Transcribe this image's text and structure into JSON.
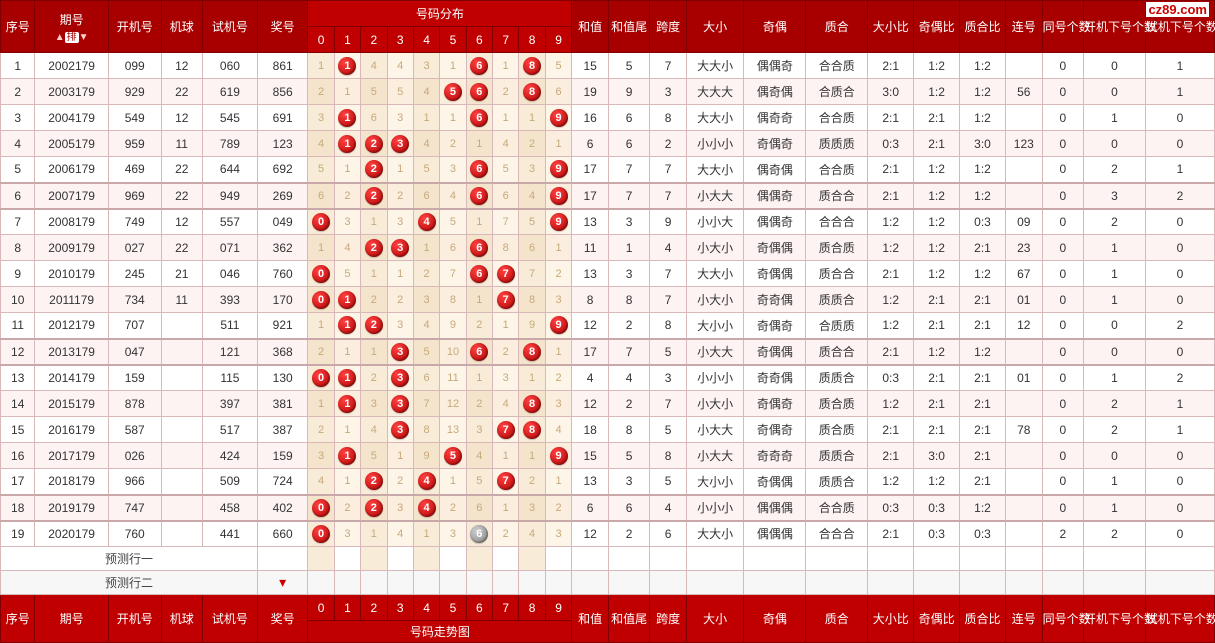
{
  "watermark": "cz89.com",
  "columns": {
    "seq": "序号",
    "period": "期号",
    "sort_label": "排",
    "open_num": "开机号",
    "machine_ball": "机球",
    "test_num": "试机号",
    "prize_num": "奖号",
    "dist_header": "号码分布",
    "dist_digits": [
      "0",
      "1",
      "2",
      "3",
      "4",
      "5",
      "6",
      "7",
      "8",
      "9"
    ],
    "sum": "和值",
    "sum_tail": "和值尾",
    "span": "跨度",
    "size": "大小",
    "parity": "奇偶",
    "prime": "质合",
    "size_ratio": "大小比",
    "parity_ratio": "奇偶比",
    "prime_ratio": "质合比",
    "consec": "连号",
    "same_count": "同号个数",
    "open_next_count": "开机下号个数",
    "test_next_count": "试机下号个数"
  },
  "footer_trend_label": "号码走势图",
  "predict_rows": [
    "预测行一",
    "预测行二"
  ],
  "rows": [
    {
      "seq": 1,
      "period": "2002179",
      "open": "099",
      "mb": "12",
      "test": "060",
      "prize": "861",
      "dist": [
        1,
        "B1",
        4,
        4,
        3,
        1,
        "B6",
        1,
        "B8",
        5
      ],
      "sum": 15,
      "tail": 5,
      "span": 7,
      "size": "大大小",
      "parity": "偶偶奇",
      "prime": "合合质",
      "sr": "2:1",
      "pr": "1:2",
      "zr": "1:2",
      "consec": "",
      "same": 0,
      "onxt": 0,
      "tnxt": 1
    },
    {
      "seq": 2,
      "period": "2003179",
      "open": "929",
      "mb": "22",
      "test": "619",
      "prize": "856",
      "dist": [
        2,
        1,
        5,
        5,
        4,
        "B5",
        "B6",
        2,
        "B8",
        6
      ],
      "sum": 19,
      "tail": 9,
      "span": 3,
      "size": "大大大",
      "parity": "偶奇偶",
      "prime": "合质合",
      "sr": "3:0",
      "pr": "1:2",
      "zr": "1:2",
      "consec": "56",
      "same": 0,
      "onxt": 0,
      "tnxt": 1
    },
    {
      "seq": 3,
      "period": "2004179",
      "open": "549",
      "mb": "12",
      "test": "545",
      "prize": "691",
      "dist": [
        3,
        "B1",
        6,
        3,
        1,
        1,
        "B6",
        1,
        1,
        "B9"
      ],
      "sum": 16,
      "tail": 6,
      "span": 8,
      "size": "大大小",
      "parity": "偶奇奇",
      "prime": "合合质",
      "sr": "2:1",
      "pr": "2:1",
      "zr": "1:2",
      "consec": "",
      "same": 0,
      "onxt": 1,
      "tnxt": 0
    },
    {
      "seq": 4,
      "period": "2005179",
      "open": "959",
      "mb": "11",
      "test": "789",
      "prize": "123",
      "dist": [
        4,
        "B1",
        "B2",
        "B3",
        4,
        2,
        1,
        4,
        2,
        1
      ],
      "sum": 6,
      "tail": 6,
      "span": 2,
      "size": "小小小",
      "parity": "奇偶奇",
      "prime": "质质质",
      "sr": "0:3",
      "pr": "2:1",
      "zr": "3:0",
      "consec": "123",
      "same": 0,
      "onxt": 0,
      "tnxt": 0
    },
    {
      "seq": 5,
      "period": "2006179",
      "open": "469",
      "mb": "22",
      "test": "644",
      "prize": "692",
      "dist": [
        5,
        1,
        "B2",
        1,
        5,
        3,
        "B6",
        5,
        3,
        "B9"
      ],
      "sum": 17,
      "tail": 7,
      "span": 7,
      "size": "大大小",
      "parity": "偶奇偶",
      "prime": "合合质",
      "sr": "2:1",
      "pr": "1:2",
      "zr": "1:2",
      "consec": "",
      "same": 0,
      "onxt": 2,
      "tnxt": 1
    },
    {
      "seq": 6,
      "period": "2007179",
      "open": "969",
      "mb": "22",
      "test": "949",
      "prize": "269",
      "dist": [
        6,
        2,
        "B2",
        2,
        6,
        4,
        "B6",
        6,
        4,
        "B9"
      ],
      "sum": 17,
      "tail": 7,
      "span": 7,
      "size": "小大大",
      "parity": "偶偶奇",
      "prime": "质合合",
      "sr": "2:1",
      "pr": "1:2",
      "zr": "1:2",
      "consec": "",
      "same": 0,
      "onxt": 3,
      "tnxt": 2,
      "gap": true
    },
    {
      "seq": 7,
      "period": "2008179",
      "open": "749",
      "mb": "12",
      "test": "557",
      "prize": "049",
      "dist": [
        "B0",
        3,
        1,
        3,
        "B4",
        5,
        1,
        7,
        5,
        "B9"
      ],
      "sum": 13,
      "tail": 3,
      "span": 9,
      "size": "小小大",
      "parity": "偶偶奇",
      "prime": "合合合",
      "sr": "1:2",
      "pr": "1:2",
      "zr": "0:3",
      "consec": "09",
      "same": 0,
      "onxt": 2,
      "tnxt": 0,
      "gap": true
    },
    {
      "seq": 8,
      "period": "2009179",
      "open": "027",
      "mb": "22",
      "test": "071",
      "prize": "362",
      "dist": [
        1,
        4,
        "B2",
        "B3",
        1,
        6,
        "B6",
        8,
        6,
        1
      ],
      "sum": 11,
      "tail": 1,
      "span": 4,
      "size": "小大小",
      "parity": "奇偶偶",
      "prime": "质合质",
      "sr": "1:2",
      "pr": "1:2",
      "zr": "2:1",
      "consec": "23",
      "same": 0,
      "onxt": 1,
      "tnxt": 0
    },
    {
      "seq": 9,
      "period": "2010179",
      "open": "245",
      "mb": "21",
      "test": "046",
      "prize": "760",
      "dist": [
        "B0",
        5,
        1,
        1,
        2,
        7,
        "B6",
        "B7",
        7,
        2
      ],
      "sum": 13,
      "tail": 3,
      "span": 7,
      "size": "大大小",
      "parity": "奇偶偶",
      "prime": "质合合",
      "sr": "2:1",
      "pr": "1:2",
      "zr": "1:2",
      "consec": "67",
      "same": 0,
      "onxt": 1,
      "tnxt": 0
    },
    {
      "seq": 10,
      "period": "2011179",
      "open": "734",
      "mb": "11",
      "test": "393",
      "prize": "170",
      "dist": [
        "B0",
        "B1",
        2,
        2,
        3,
        8,
        1,
        "B7",
        8,
        3
      ],
      "sum": 8,
      "tail": 8,
      "span": 7,
      "size": "小大小",
      "parity": "奇奇偶",
      "prime": "质质合",
      "sr": "1:2",
      "pr": "2:1",
      "zr": "2:1",
      "consec": "01",
      "same": 0,
      "onxt": 1,
      "tnxt": 0
    },
    {
      "seq": 11,
      "period": "2012179",
      "open": "707",
      "mb": "",
      "test": "511",
      "prize": "921",
      "dist": [
        1,
        "B1",
        "B2",
        3,
        4,
        9,
        2,
        1,
        9,
        "B9"
      ],
      "sum": 12,
      "tail": 2,
      "span": 8,
      "size": "大小小",
      "parity": "奇偶奇",
      "prime": "合质质",
      "sr": "1:2",
      "pr": "2:1",
      "zr": "2:1",
      "consec": "12",
      "same": 0,
      "onxt": 0,
      "tnxt": 2
    },
    {
      "seq": 12,
      "period": "2013179",
      "open": "047",
      "mb": "",
      "test": "121",
      "prize": "368",
      "dist": [
        2,
        1,
        1,
        "B3",
        5,
        10,
        "B6",
        2,
        "B8",
        1
      ],
      "sum": 17,
      "tail": 7,
      "span": 5,
      "size": "小大大",
      "parity": "奇偶偶",
      "prime": "质合合",
      "sr": "2:1",
      "pr": "1:2",
      "zr": "1:2",
      "consec": "",
      "same": 0,
      "onxt": 0,
      "tnxt": 0,
      "gap": true
    },
    {
      "seq": 13,
      "period": "2014179",
      "open": "159",
      "mb": "",
      "test": "115",
      "prize": "130",
      "dist": [
        "B0",
        "B1",
        2,
        "B3",
        6,
        11,
        1,
        3,
        1,
        2
      ],
      "sum": 4,
      "tail": 4,
      "span": 3,
      "size": "小小小",
      "parity": "奇奇偶",
      "prime": "质质合",
      "sr": "0:3",
      "pr": "2:1",
      "zr": "2:1",
      "consec": "01",
      "same": 0,
      "onxt": 1,
      "tnxt": 2,
      "gap": true
    },
    {
      "seq": 14,
      "period": "2015179",
      "open": "878",
      "mb": "",
      "test": "397",
      "prize": "381",
      "dist": [
        1,
        "B1",
        3,
        "B3",
        7,
        12,
        2,
        4,
        "B8",
        3
      ],
      "sum": 12,
      "tail": 2,
      "span": 7,
      "size": "小大小",
      "parity": "奇偶奇",
      "prime": "质合质",
      "sr": "1:2",
      "pr": "2:1",
      "zr": "2:1",
      "consec": "",
      "same": 0,
      "onxt": 2,
      "tnxt": 1
    },
    {
      "seq": 15,
      "period": "2016179",
      "open": "587",
      "mb": "",
      "test": "517",
      "prize": "387",
      "dist": [
        2,
        1,
        4,
        "B3",
        8,
        13,
        3,
        "B7",
        "B8",
        4
      ],
      "sum": 18,
      "tail": 8,
      "span": 5,
      "size": "小大大",
      "parity": "奇偶奇",
      "prime": "质合质",
      "sr": "2:1",
      "pr": "2:1",
      "zr": "2:1",
      "consec": "78",
      "same": 0,
      "onxt": 2,
      "tnxt": 1
    },
    {
      "seq": 16,
      "period": "2017179",
      "open": "026",
      "mb": "",
      "test": "424",
      "prize": "159",
      "dist": [
        3,
        "B1",
        5,
        1,
        9,
        "B5",
        4,
        1,
        1,
        "B9"
      ],
      "sum": 15,
      "tail": 5,
      "span": 8,
      "size": "小大大",
      "parity": "奇奇奇",
      "prime": "质质合",
      "sr": "2:1",
      "pr": "3:0",
      "zr": "2:1",
      "consec": "",
      "same": 0,
      "onxt": 0,
      "tnxt": 0
    },
    {
      "seq": 17,
      "period": "2018179",
      "open": "966",
      "mb": "",
      "test": "509",
      "prize": "724",
      "dist": [
        4,
        1,
        "B2",
        2,
        "B4",
        1,
        5,
        "B7",
        2,
        1
      ],
      "sum": 13,
      "tail": 3,
      "span": 5,
      "size": "大小小",
      "parity": "奇偶偶",
      "prime": "质质合",
      "sr": "1:2",
      "pr": "1:2",
      "zr": "2:1",
      "consec": "",
      "same": 0,
      "onxt": 1,
      "tnxt": 0
    },
    {
      "seq": 18,
      "period": "2019179",
      "open": "747",
      "mb": "",
      "test": "458",
      "prize": "402",
      "dist": [
        "B0",
        2,
        "B2",
        3,
        "B4",
        2,
        6,
        1,
        3,
        2
      ],
      "sum": 6,
      "tail": 6,
      "span": 4,
      "size": "小小小",
      "parity": "偶偶偶",
      "prime": "合合质",
      "sr": "0:3",
      "pr": "0:3",
      "zr": "1:2",
      "consec": "",
      "same": 0,
      "onxt": 1,
      "tnxt": 0,
      "gap": true
    },
    {
      "seq": 19,
      "period": "2020179",
      "open": "760",
      "mb": "",
      "test": "441",
      "prize": "660",
      "dist": [
        "B0",
        3,
        1,
        4,
        1,
        3,
        "G6",
        2,
        4,
        3
      ],
      "sum": 12,
      "tail": 2,
      "span": 6,
      "size": "大大小",
      "parity": "偶偶偶",
      "prime": "合合合",
      "sr": "2:1",
      "pr": "0:3",
      "zr": "0:3",
      "consec": "",
      "same": 2,
      "onxt": 2,
      "tnxt": 0,
      "gap": true
    }
  ],
  "col_widths": {
    "seq": 30,
    "period": 64,
    "open": 46,
    "mb": 36,
    "test": 48,
    "prize": 44,
    "dist": 23,
    "sum": 32,
    "tail": 36,
    "span": 32,
    "size": 50,
    "parity": 54,
    "prime": 54,
    "sr": 40,
    "pr": 40,
    "zr": 40,
    "consec": 32,
    "same": 36,
    "onxt": 54,
    "tnxt": 60
  }
}
